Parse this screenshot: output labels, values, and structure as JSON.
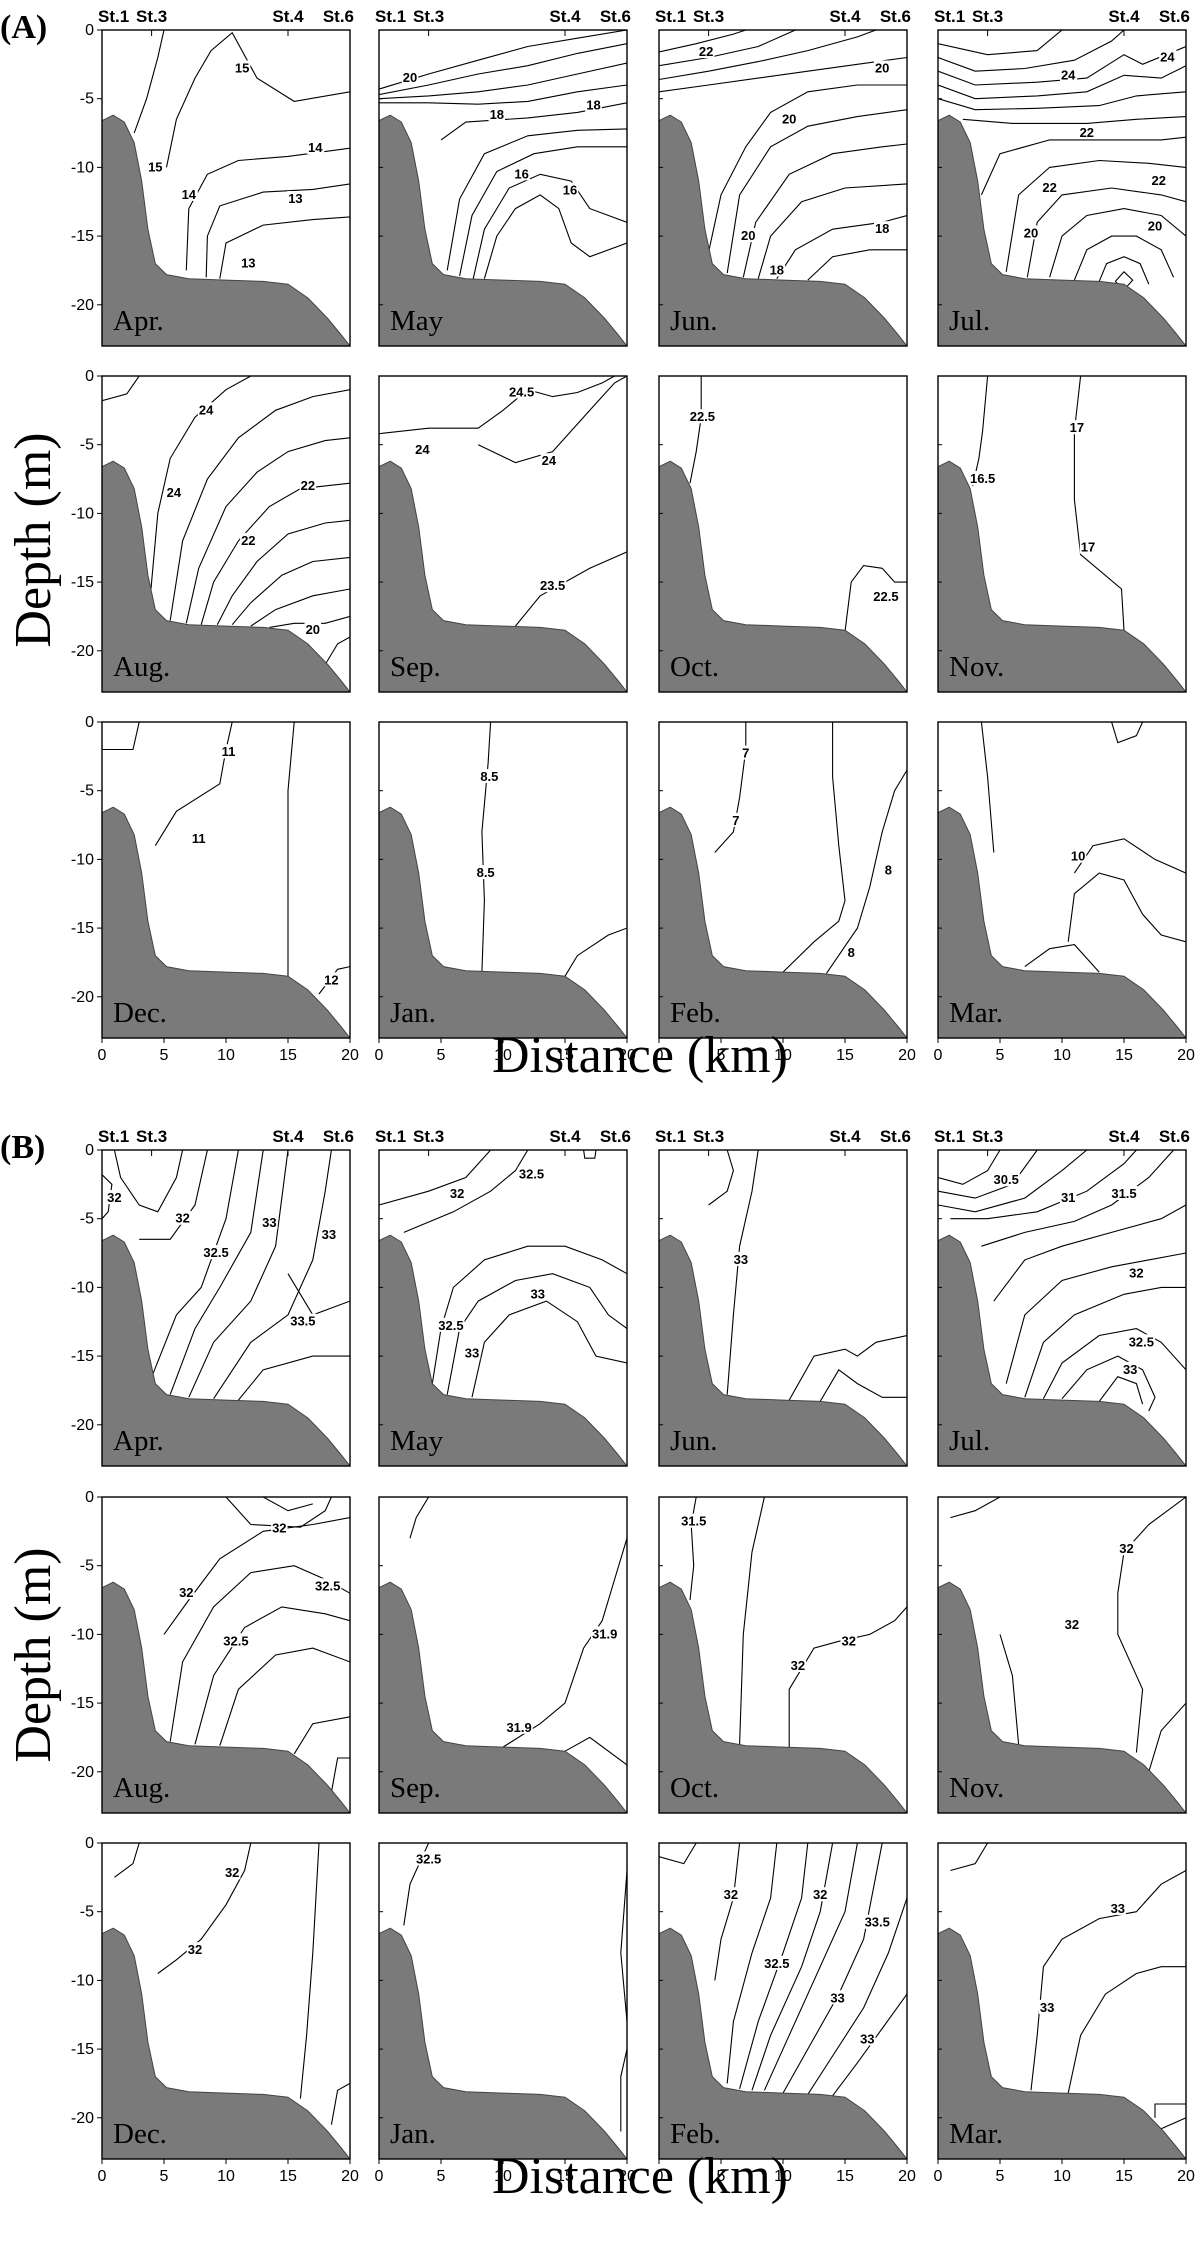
{
  "figure": {
    "x_axis_title": "Distance (km)",
    "y_axis_title": "Depth (m)",
    "station_labels": [
      "St.1",
      "St.3",
      "St.4",
      "St.6"
    ]
  },
  "chart_data": [
    {
      "type": "contour",
      "section_label": "(A)",
      "xlim": [
        0,
        20
      ],
      "ylim": [
        -23,
        0
      ],
      "x_ticks": [
        0,
        5,
        10,
        15,
        20
      ],
      "y_ticks": [
        0,
        -5,
        -10,
        -15,
        -20
      ],
      "station_positions_km": {
        "St.1": 0,
        "St.3": 4,
        "St.4": 15,
        "St.6": 20
      },
      "panels": [
        {
          "month": "Apr.",
          "contour_labels": [
            15,
            15,
            14,
            14,
            13,
            13
          ]
        },
        {
          "month": "May",
          "contour_labels": [
            20,
            18,
            18,
            16,
            16
          ]
        },
        {
          "month": "Jun.",
          "contour_labels": [
            22,
            20,
            20,
            20,
            18,
            18
          ]
        },
        {
          "month": "Jul.",
          "contour_labels": [
            24,
            24,
            22,
            22,
            22,
            20,
            20
          ]
        },
        {
          "month": "Aug.",
          "contour_labels": [
            24,
            24,
            22,
            22,
            20
          ]
        },
        {
          "month": "Sep.",
          "contour_labels": [
            24.5,
            24,
            24,
            23.5
          ]
        },
        {
          "month": "Oct.",
          "contour_labels": [
            22.5,
            22.5
          ]
        },
        {
          "month": "Nov.",
          "contour_labels": [
            16.5,
            17,
            17
          ]
        },
        {
          "month": "Dec.",
          "contour_labels": [
            11,
            11,
            12
          ]
        },
        {
          "month": "Jan.",
          "contour_labels": [
            8.5,
            8.5
          ]
        },
        {
          "month": "Feb.",
          "contour_labels": [
            7,
            7,
            8,
            8
          ]
        },
        {
          "month": "Mar.",
          "contour_labels": [
            10
          ]
        }
      ]
    },
    {
      "type": "contour",
      "section_label": "(B)",
      "xlim": [
        0,
        20
      ],
      "ylim": [
        -23,
        0
      ],
      "x_ticks": [
        0,
        5,
        10,
        15,
        20
      ],
      "y_ticks": [
        0,
        -5,
        -10,
        -15,
        -20
      ],
      "station_positions_km": {
        "St.1": 0,
        "St.3": 4,
        "St.4": 15,
        "St.6": 20
      },
      "panels": [
        {
          "month": "Apr.",
          "contour_labels": [
            32,
            32,
            32.5,
            33,
            33,
            33.5
          ]
        },
        {
          "month": "May",
          "contour_labels": [
            32,
            32.5,
            32.5,
            33,
            33
          ]
        },
        {
          "month": "Jun.",
          "contour_labels": [
            33
          ]
        },
        {
          "month": "Jul.",
          "contour_labels": [
            30.5,
            31,
            31.5,
            32,
            32.5,
            33
          ]
        },
        {
          "month": "Aug.",
          "contour_labels": [
            32,
            32,
            32.5,
            32.5
          ]
        },
        {
          "month": "Sep.",
          "contour_labels": [
            31.9,
            31.9
          ]
        },
        {
          "month": "Oct.",
          "contour_labels": [
            31.5,
            32,
            32
          ]
        },
        {
          "month": "Nov.",
          "contour_labels": [
            32,
            32
          ]
        },
        {
          "month": "Dec.",
          "contour_labels": [
            32,
            32
          ]
        },
        {
          "month": "Jan.",
          "contour_labels": [
            32.5
          ]
        },
        {
          "month": "Feb.",
          "contour_labels": [
            32,
            32,
            32.5,
            33,
            33,
            33.5
          ]
        },
        {
          "month": "Mar.",
          "contour_labels": [
            33,
            33
          ]
        }
      ]
    }
  ]
}
